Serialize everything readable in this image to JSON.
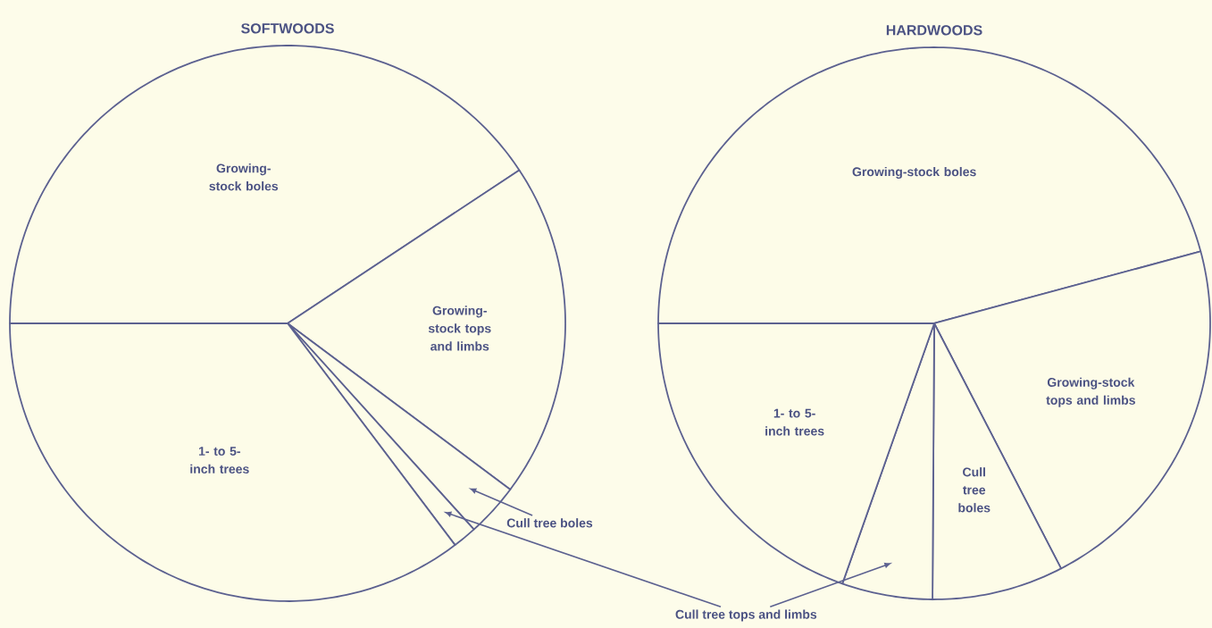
{
  "chart_data": [
    {
      "type": "pie",
      "title": "SOFTWOODS",
      "categories": [
        "Growing-stock boles",
        "Growing-stock tops and limbs",
        "Cull tree boles",
        null,
        "1- to 5-inch trees"
      ],
      "values": [
        40.7,
        19.5,
        3.1,
        1.4,
        35.3
      ],
      "colors": [
        "#fdfce8",
        "#fdfce8",
        "#fdfce8",
        "#fdfce8",
        "#fdfce8"
      ]
    },
    {
      "type": "pie",
      "title": "HARDWOODS",
      "categories": [
        "Growing-stock boles",
        "Growing-stock tops and limbs",
        "Cull tree boles",
        "Cull tree tops and limbs",
        "1- to 5-inch trees"
      ],
      "values": [
        45.8,
        21.6,
        7.7,
        5.3,
        19.6
      ],
      "colors": [
        "#fdfce8",
        "#fdfce8",
        "#fdfce8",
        "#fdfce8",
        "#fdfce8"
      ]
    }
  ]
}
